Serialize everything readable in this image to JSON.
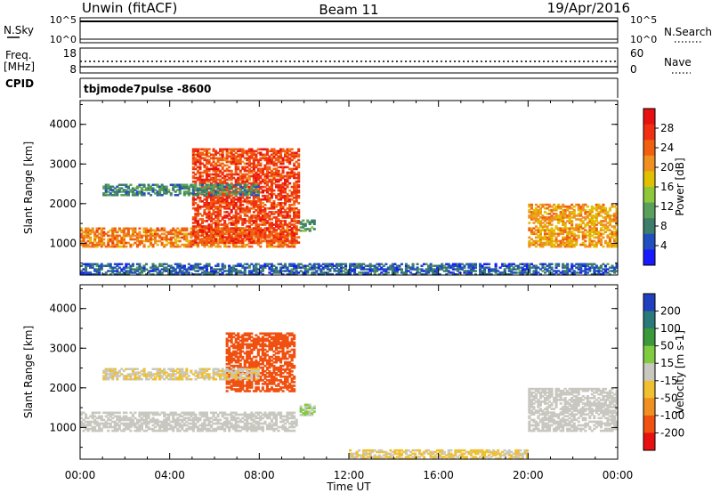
{
  "header": {
    "station": "Unwin (fitACF)",
    "beam": "Beam 11",
    "date": "19/Apr/2016"
  },
  "noise_panel": {
    "left_label": "N.Sky",
    "right_label": "N.Search",
    "left_ticks": [
      "10^5",
      "10^0"
    ],
    "right_ticks": [
      "10^5",
      "10^0"
    ]
  },
  "freq_panel": {
    "left_label_1": "Freq.",
    "left_label_2": "[MHz]",
    "right_label": "Nave",
    "left_ticks": [
      "18",
      "8"
    ],
    "right_ticks": [
      "60",
      "0"
    ]
  },
  "cpid": {
    "label": "CPID",
    "mode": "tbjmode7pulse -8600"
  },
  "x_axis": {
    "label": "Time UT",
    "ticks": [
      "00:00",
      "04:00",
      "08:00",
      "12:00",
      "16:00",
      "20:00",
      "00:00"
    ],
    "range_hours": [
      0,
      24
    ]
  },
  "chart_data": [
    {
      "type": "heatmap",
      "name": "power",
      "ylabel": "Slant Range [km]",
      "yticks": [
        "1000",
        "2000",
        "3000",
        "4000"
      ],
      "ylim": [
        200,
        4600
      ],
      "xlim_hours": [
        0,
        24
      ],
      "colorbar_label": "Power [dB]",
      "colorbar_ticks": [
        "4",
        "8",
        "12",
        "16",
        "20",
        "24",
        "28"
      ],
      "colorbar_range": [
        0,
        32
      ],
      "colors": [
        "#1a1aff",
        "#2050c0",
        "#3d7d6a",
        "#5aa05a",
        "#8ec83a",
        "#e0c000",
        "#f09020",
        "#f06010",
        "#f03010",
        "#e81010"
      ],
      "echo_regions": [
        {
          "t_start": 0.0,
          "t_end": 9.7,
          "range_start_km": 900,
          "range_end_km": 1400,
          "value_db": 22
        },
        {
          "t_start": 5.0,
          "t_end": 9.8,
          "range_start_km": 1000,
          "range_end_km": 3400,
          "value_db": 26
        },
        {
          "t_start": 1.0,
          "t_end": 8.0,
          "range_start_km": 2200,
          "range_end_km": 2500,
          "value_db": 9
        },
        {
          "t_start": 9.8,
          "t_end": 10.5,
          "range_start_km": 1300,
          "range_end_km": 1600,
          "value_db": 10
        },
        {
          "t_start": 20.0,
          "t_end": 24.0,
          "range_start_km": 900,
          "range_end_km": 2000,
          "value_db": 20
        },
        {
          "t_start": 0.0,
          "t_end": 24.0,
          "range_start_km": 200,
          "range_end_km": 500,
          "value_db": 6
        }
      ]
    },
    {
      "type": "heatmap",
      "name": "velocity",
      "ylabel": "Slant Range [km]",
      "yticks": [
        "1000",
        "2000",
        "3000",
        "4000"
      ],
      "ylim": [
        200,
        4600
      ],
      "xlim_hours": [
        0,
        24
      ],
      "colorbar_label": "Velocity [m s-1]",
      "colorbar_ticks": [
        "200",
        "100",
        "50",
        "15",
        "-15",
        "-50",
        "-100",
        "-200"
      ],
      "colorbar_range": [
        -300,
        300
      ],
      "colors": [
        "#2040c0",
        "#2a7a7a",
        "#3a9a3a",
        "#80cc40",
        "#c8c8c0",
        "#f0c030",
        "#f09020",
        "#f05010",
        "#e81010"
      ],
      "echo_regions": [
        {
          "t_start": 0.0,
          "t_end": 9.7,
          "range_start_km": 900,
          "range_end_km": 1400,
          "value_ms": 0
        },
        {
          "t_start": 6.5,
          "t_end": 9.6,
          "range_start_km": 1900,
          "range_end_km": 3400,
          "value_ms": -200
        },
        {
          "t_start": 1.0,
          "t_end": 8.0,
          "range_start_km": 2200,
          "range_end_km": 2500,
          "value_ms": -30
        },
        {
          "t_start": 9.8,
          "t_end": 10.5,
          "range_start_km": 1300,
          "range_end_km": 1600,
          "value_ms": 30
        },
        {
          "t_start": 20.0,
          "t_end": 24.0,
          "range_start_km": 900,
          "range_end_km": 2000,
          "value_ms": 0
        },
        {
          "t_start": 12.0,
          "t_end": 20.0,
          "range_start_km": 200,
          "range_end_km": 450,
          "value_ms": -40
        }
      ]
    }
  ]
}
